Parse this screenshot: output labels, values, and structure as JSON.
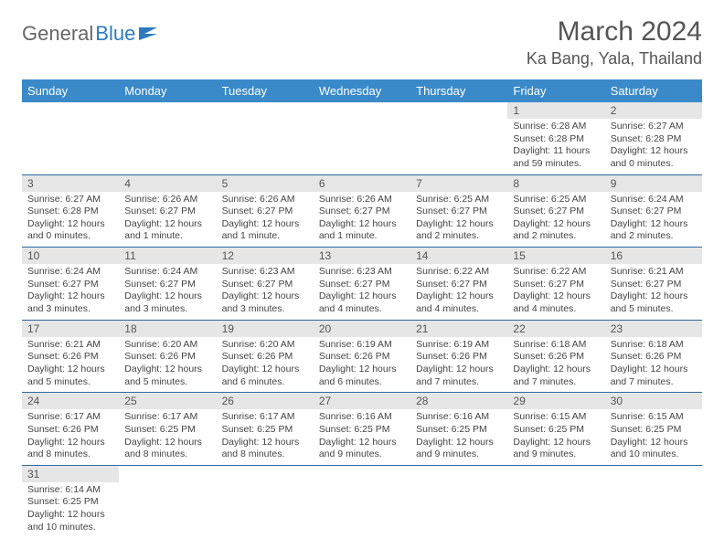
{
  "logo": {
    "text1": "General",
    "text2": "Blue",
    "icon_color": "#2b7bbf"
  },
  "title": {
    "month": "March 2024",
    "location": "Ka Bang, Yala, Thailand"
  },
  "colors": {
    "header_bg": "#3a8ac9",
    "header_text": "#ffffff",
    "daynum_bg": "#e6e6e6",
    "row_border": "#2b6aa3",
    "text": "#444444"
  },
  "weekdays": [
    "Sunday",
    "Monday",
    "Tuesday",
    "Wednesday",
    "Thursday",
    "Friday",
    "Saturday"
  ],
  "weeks": [
    [
      null,
      null,
      null,
      null,
      null,
      {
        "n": "1",
        "sr": "Sunrise: 6:28 AM",
        "ss": "Sunset: 6:28 PM",
        "dl": "Daylight: 11 hours and 59 minutes."
      },
      {
        "n": "2",
        "sr": "Sunrise: 6:27 AM",
        "ss": "Sunset: 6:28 PM",
        "dl": "Daylight: 12 hours and 0 minutes."
      }
    ],
    [
      {
        "n": "3",
        "sr": "Sunrise: 6:27 AM",
        "ss": "Sunset: 6:28 PM",
        "dl": "Daylight: 12 hours and 0 minutes."
      },
      {
        "n": "4",
        "sr": "Sunrise: 6:26 AM",
        "ss": "Sunset: 6:27 PM",
        "dl": "Daylight: 12 hours and 1 minute."
      },
      {
        "n": "5",
        "sr": "Sunrise: 6:26 AM",
        "ss": "Sunset: 6:27 PM",
        "dl": "Daylight: 12 hours and 1 minute."
      },
      {
        "n": "6",
        "sr": "Sunrise: 6:26 AM",
        "ss": "Sunset: 6:27 PM",
        "dl": "Daylight: 12 hours and 1 minute."
      },
      {
        "n": "7",
        "sr": "Sunrise: 6:25 AM",
        "ss": "Sunset: 6:27 PM",
        "dl": "Daylight: 12 hours and 2 minutes."
      },
      {
        "n": "8",
        "sr": "Sunrise: 6:25 AM",
        "ss": "Sunset: 6:27 PM",
        "dl": "Daylight: 12 hours and 2 minutes."
      },
      {
        "n": "9",
        "sr": "Sunrise: 6:24 AM",
        "ss": "Sunset: 6:27 PM",
        "dl": "Daylight: 12 hours and 2 minutes."
      }
    ],
    [
      {
        "n": "10",
        "sr": "Sunrise: 6:24 AM",
        "ss": "Sunset: 6:27 PM",
        "dl": "Daylight: 12 hours and 3 minutes."
      },
      {
        "n": "11",
        "sr": "Sunrise: 6:24 AM",
        "ss": "Sunset: 6:27 PM",
        "dl": "Daylight: 12 hours and 3 minutes."
      },
      {
        "n": "12",
        "sr": "Sunrise: 6:23 AM",
        "ss": "Sunset: 6:27 PM",
        "dl": "Daylight: 12 hours and 3 minutes."
      },
      {
        "n": "13",
        "sr": "Sunrise: 6:23 AM",
        "ss": "Sunset: 6:27 PM",
        "dl": "Daylight: 12 hours and 4 minutes."
      },
      {
        "n": "14",
        "sr": "Sunrise: 6:22 AM",
        "ss": "Sunset: 6:27 PM",
        "dl": "Daylight: 12 hours and 4 minutes."
      },
      {
        "n": "15",
        "sr": "Sunrise: 6:22 AM",
        "ss": "Sunset: 6:27 PM",
        "dl": "Daylight: 12 hours and 4 minutes."
      },
      {
        "n": "16",
        "sr": "Sunrise: 6:21 AM",
        "ss": "Sunset: 6:27 PM",
        "dl": "Daylight: 12 hours and 5 minutes."
      }
    ],
    [
      {
        "n": "17",
        "sr": "Sunrise: 6:21 AM",
        "ss": "Sunset: 6:26 PM",
        "dl": "Daylight: 12 hours and 5 minutes."
      },
      {
        "n": "18",
        "sr": "Sunrise: 6:20 AM",
        "ss": "Sunset: 6:26 PM",
        "dl": "Daylight: 12 hours and 5 minutes."
      },
      {
        "n": "19",
        "sr": "Sunrise: 6:20 AM",
        "ss": "Sunset: 6:26 PM",
        "dl": "Daylight: 12 hours and 6 minutes."
      },
      {
        "n": "20",
        "sr": "Sunrise: 6:19 AM",
        "ss": "Sunset: 6:26 PM",
        "dl": "Daylight: 12 hours and 6 minutes."
      },
      {
        "n": "21",
        "sr": "Sunrise: 6:19 AM",
        "ss": "Sunset: 6:26 PM",
        "dl": "Daylight: 12 hours and 7 minutes."
      },
      {
        "n": "22",
        "sr": "Sunrise: 6:18 AM",
        "ss": "Sunset: 6:26 PM",
        "dl": "Daylight: 12 hours and 7 minutes."
      },
      {
        "n": "23",
        "sr": "Sunrise: 6:18 AM",
        "ss": "Sunset: 6:26 PM",
        "dl": "Daylight: 12 hours and 7 minutes."
      }
    ],
    [
      {
        "n": "24",
        "sr": "Sunrise: 6:17 AM",
        "ss": "Sunset: 6:26 PM",
        "dl": "Daylight: 12 hours and 8 minutes."
      },
      {
        "n": "25",
        "sr": "Sunrise: 6:17 AM",
        "ss": "Sunset: 6:25 PM",
        "dl": "Daylight: 12 hours and 8 minutes."
      },
      {
        "n": "26",
        "sr": "Sunrise: 6:17 AM",
        "ss": "Sunset: 6:25 PM",
        "dl": "Daylight: 12 hours and 8 minutes."
      },
      {
        "n": "27",
        "sr": "Sunrise: 6:16 AM",
        "ss": "Sunset: 6:25 PM",
        "dl": "Daylight: 12 hours and 9 minutes."
      },
      {
        "n": "28",
        "sr": "Sunrise: 6:16 AM",
        "ss": "Sunset: 6:25 PM",
        "dl": "Daylight: 12 hours and 9 minutes."
      },
      {
        "n": "29",
        "sr": "Sunrise: 6:15 AM",
        "ss": "Sunset: 6:25 PM",
        "dl": "Daylight: 12 hours and 9 minutes."
      },
      {
        "n": "30",
        "sr": "Sunrise: 6:15 AM",
        "ss": "Sunset: 6:25 PM",
        "dl": "Daylight: 12 hours and 10 minutes."
      }
    ],
    [
      {
        "n": "31",
        "sr": "Sunrise: 6:14 AM",
        "ss": "Sunset: 6:25 PM",
        "dl": "Daylight: 12 hours and 10 minutes."
      },
      null,
      null,
      null,
      null,
      null,
      null
    ]
  ]
}
